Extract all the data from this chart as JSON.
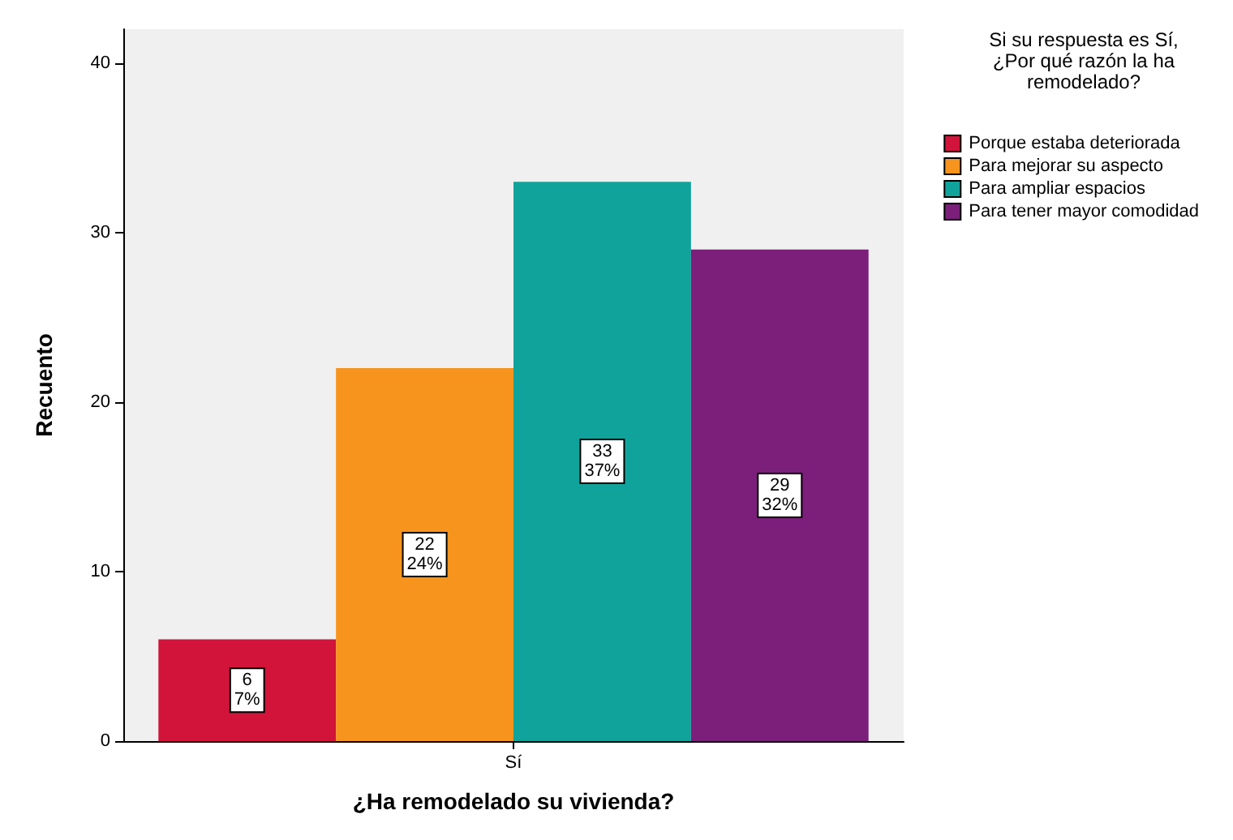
{
  "chart_data": {
    "type": "bar",
    "xlabel": "¿Ha remodelado su vivienda?",
    "ylabel": "Recuento",
    "legend_title": "Si su respuesta es Sí,\n¿Por qué razón la ha\nremodelado?",
    "categories": [
      "Sí"
    ],
    "ylim": [
      0,
      42
    ],
    "yticks": [
      0,
      10,
      20,
      30,
      40
    ],
    "grid": false,
    "legend": "right",
    "series": [
      {
        "name": "Porque estaba deteriorada",
        "color": "#d2143a",
        "values": [
          6
        ],
        "value_labels": [
          "6\n7%"
        ]
      },
      {
        "name": "Para mejorar su aspecto",
        "color": "#f7941d",
        "values": [
          22
        ],
        "value_labels": [
          "22\n24%"
        ]
      },
      {
        "name": "Para ampliar espacios",
        "color": "#10a39b",
        "values": [
          33
        ],
        "value_labels": [
          "33\n37%"
        ]
      },
      {
        "name": "Para tener mayor comodidad",
        "color": "#7b1f7b",
        "values": [
          29
        ],
        "value_labels": [
          "29\n32%"
        ]
      }
    ]
  }
}
